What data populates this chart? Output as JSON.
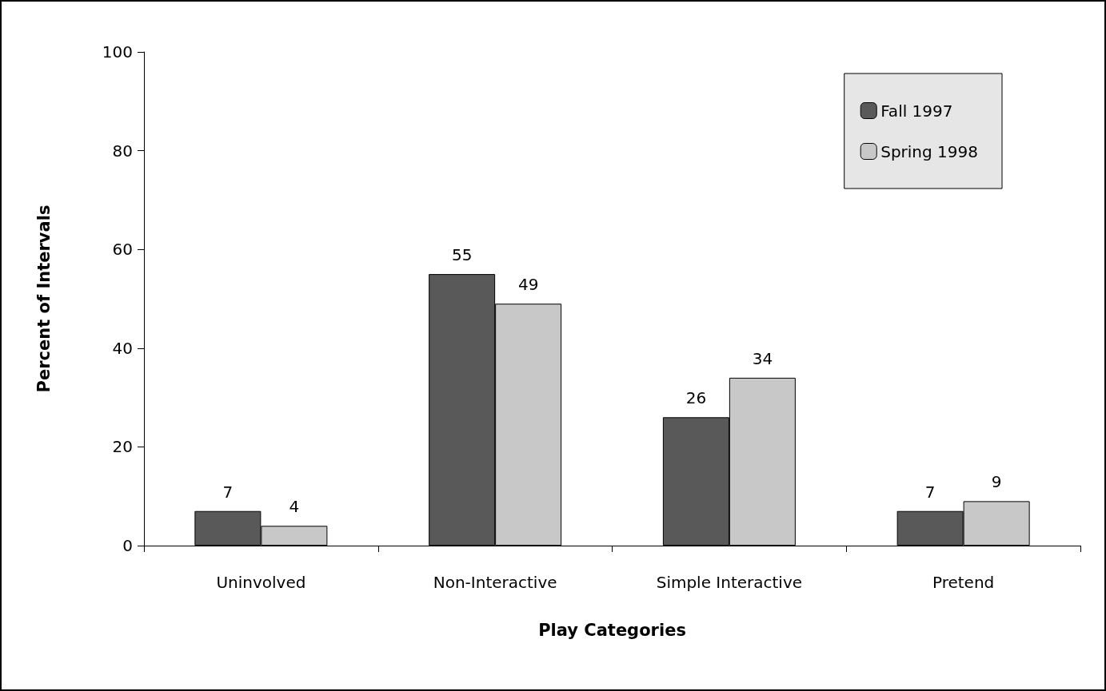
{
  "chart_data": {
    "type": "bar",
    "xlabel": "Play Categories",
    "ylabel": "Percent of Intervals",
    "categories": [
      "Uninvolved",
      "Non-Interactive",
      "Simple Interactive",
      "Pretend"
    ],
    "series": [
      {
        "name": "Fall 1997",
        "color": "#595959",
        "values": [
          7,
          55,
          26,
          7
        ]
      },
      {
        "name": "Spring 1998",
        "color": "#c8c8c8",
        "values": [
          4,
          49,
          34,
          9
        ]
      }
    ],
    "ylim": [
      0,
      100
    ],
    "yticks": [
      0,
      20,
      40,
      60,
      80,
      100
    ],
    "grid": false,
    "legend": "top right",
    "data_labels": true
  }
}
